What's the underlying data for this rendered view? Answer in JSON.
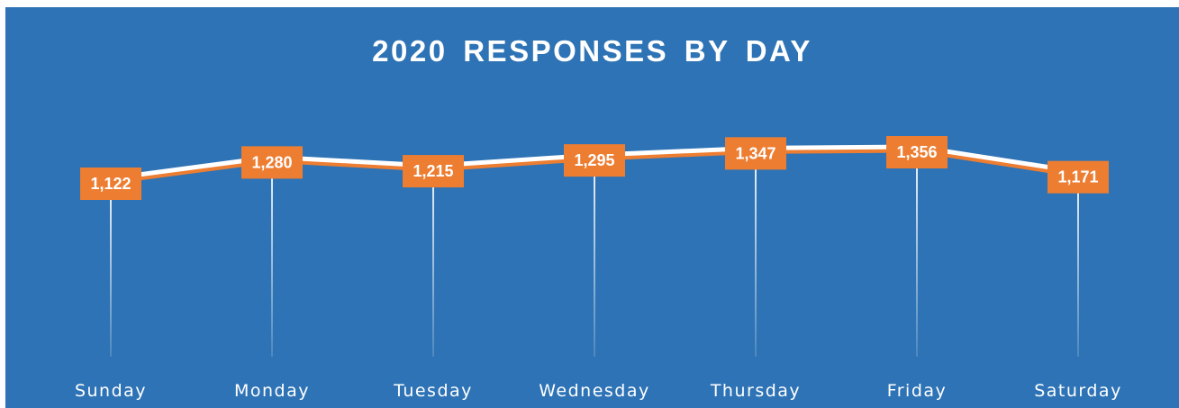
{
  "chart_data": {
    "type": "line",
    "title": "2020 RESPONSES BY DAY",
    "categories": [
      "Sunday",
      "Monday",
      "Tuesday",
      "Wednesday",
      "Thursday",
      "Friday",
      "Saturday"
    ],
    "values": [
      1122,
      1280,
      1215,
      1295,
      1347,
      1356,
      1171
    ],
    "data_labels": [
      "1,122",
      "1,280",
      "1,215",
      "1,295",
      "1,347",
      "1,356",
      "1,171"
    ],
    "ylim": [
      0,
      1400
    ],
    "grid": false,
    "legend": "none",
    "colors": {
      "background": "#2e73b5",
      "line": "#ffffff",
      "line_shadow": "#ed7d31",
      "label_box": "#ed7d31",
      "drop_lines": "#ffffff",
      "text": "#ffffff"
    }
  }
}
